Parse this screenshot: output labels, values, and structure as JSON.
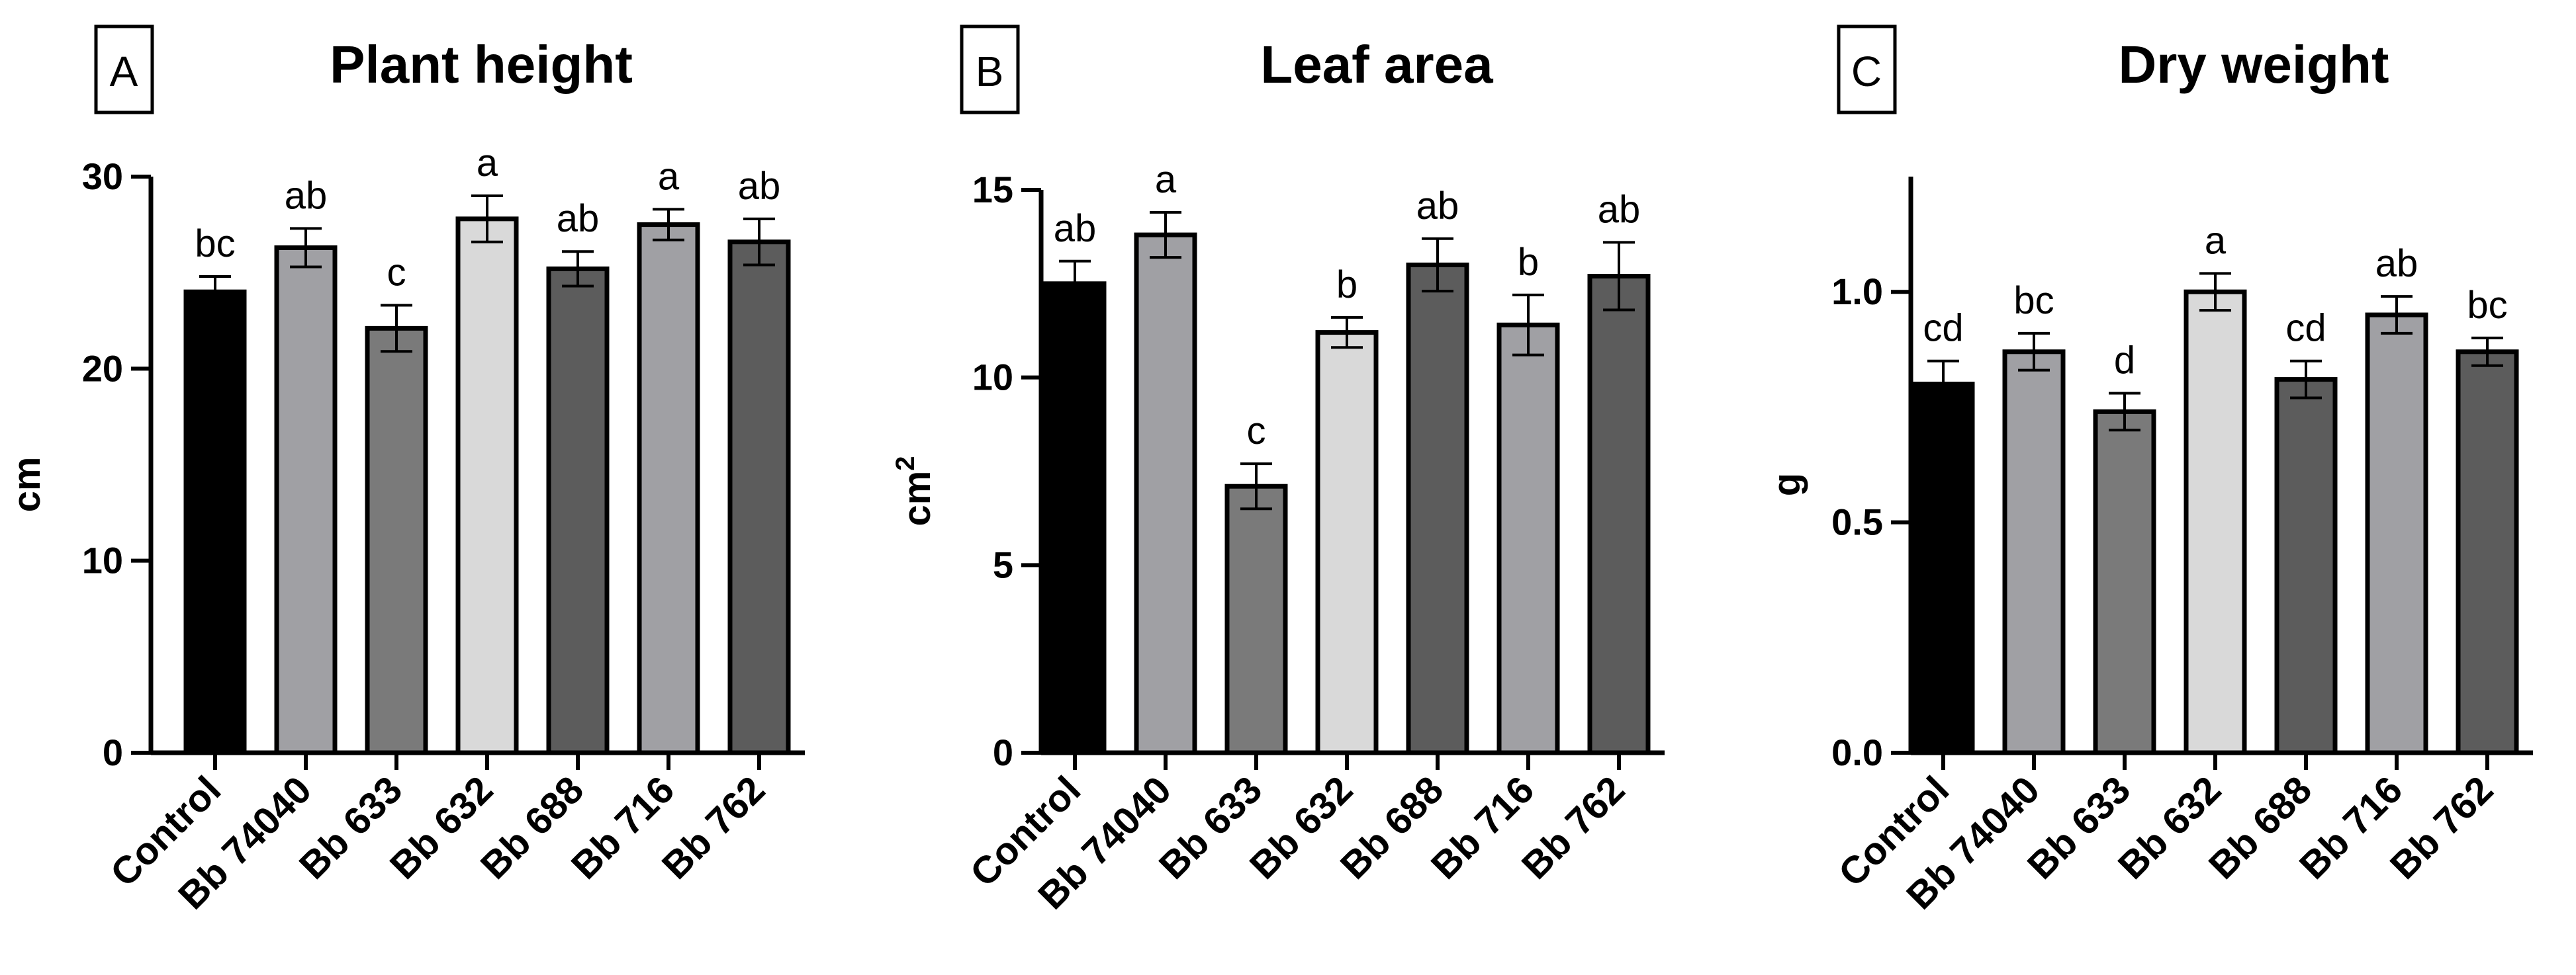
{
  "chart_data": [
    {
      "type": "bar",
      "panel": "A",
      "title": "Plant height",
      "xlabel": "",
      "ylabel": "cm",
      "ylabel_sup": "",
      "ylim": [
        0,
        30
      ],
      "yticks": [
        "0",
        "10",
        "20",
        "30"
      ],
      "ytick_values": [
        0,
        10,
        20,
        30
      ],
      "categories": [
        "Control",
        "Bb 74040",
        "Bb 633",
        "Bb 632",
        "Bb 688",
        "Bb 716",
        "Bb 762"
      ],
      "values": [
        24.0,
        26.3,
        22.1,
        27.8,
        25.2,
        27.5,
        26.6
      ],
      "errors": [
        0.8,
        1.0,
        1.2,
        1.2,
        0.9,
        0.8,
        1.2
      ],
      "significance": [
        "bc",
        "ab",
        "c",
        "a",
        "ab",
        "a",
        "ab"
      ]
    },
    {
      "type": "bar",
      "panel": "B",
      "title": "Leaf area",
      "xlabel": "",
      "ylabel": "cm",
      "ylabel_sup": "2",
      "ylim": [
        0,
        15
      ],
      "yticks": [
        "0",
        "5",
        "10",
        "15"
      ],
      "ytick_values": [
        0,
        5,
        10,
        15
      ],
      "categories": [
        "Control",
        "Bb 74040",
        "Bb 633",
        "Bb 632",
        "Bb 688",
        "Bb 716",
        "Bb 762"
      ],
      "values": [
        12.5,
        13.8,
        7.1,
        11.2,
        13.0,
        11.4,
        12.7
      ],
      "errors": [
        0.6,
        0.6,
        0.6,
        0.4,
        0.7,
        0.8,
        0.9
      ],
      "significance": [
        "ab",
        "a",
        "c",
        "b",
        "ab",
        "b",
        "ab"
      ]
    },
    {
      "type": "bar",
      "panel": "C",
      "title": "Dry weight",
      "xlabel": "",
      "ylabel": "g",
      "ylabel_sup": "",
      "ylim": [
        0,
        1.25
      ],
      "yticks": [
        "0.0",
        "0.5",
        "1.0"
      ],
      "ytick_values": [
        0,
        0.5,
        1.0
      ],
      "categories": [
        "Control",
        "Bb 74040",
        "Bb 633",
        "Bb 632",
        "Bb 688",
        "Bb 716",
        "Bb 762"
      ],
      "values": [
        0.8,
        0.87,
        0.74,
        1.0,
        0.81,
        0.95,
        0.87
      ],
      "errors": [
        0.05,
        0.04,
        0.04,
        0.04,
        0.04,
        0.04,
        0.03
      ],
      "significance": [
        "cd",
        "bc",
        "d",
        "a",
        "cd",
        "ab",
        "bc"
      ]
    }
  ],
  "colors": {
    "bars": [
      "#000000",
      "#a0a0a4",
      "#7a7a7a",
      "#d9d9d9",
      "#5c5c5c",
      "#a0a0a4",
      "#5c5c5c"
    ],
    "axis": "#000000",
    "background": "#ffffff"
  }
}
